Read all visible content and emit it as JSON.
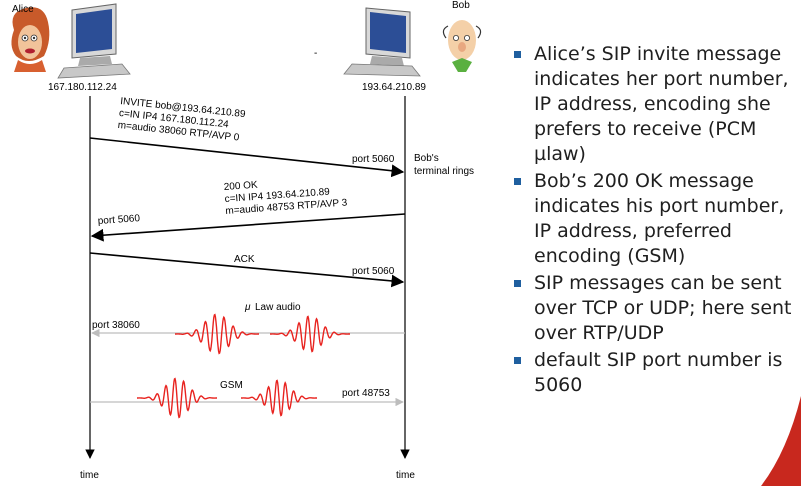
{
  "participants": {
    "alice": {
      "name": "Alice",
      "ip": "167.180.112.24"
    },
    "bob": {
      "name": "Bob",
      "ip": "193.64.210.89"
    },
    "dash": "-"
  },
  "time_label": "time",
  "messages": {
    "invite": {
      "lines": [
        "INVITE bob@193.64.210.89",
        "c=IN IP4 167.180.112.24",
        "m=audio 38060 RTP/AVP 0"
      ],
      "port": "port 5060"
    },
    "bob_rings": [
      "Bob's",
      "terminal rings"
    ],
    "ok": {
      "lines": [
        "200 OK",
        "c=IN IP4 193.64.210.89",
        "m=audio 48753 RTP/AVP 3"
      ],
      "port": "port 5060"
    },
    "ack": {
      "label": "ACK",
      "port": "port 5060"
    },
    "ulaw": {
      "mu": "μ",
      "label": "Law audio",
      "port": "port 38060"
    },
    "gsm": {
      "label": "GSM",
      "port": "port 48753"
    }
  },
  "bullets": [
    "Alice’s SIP invite message indicates her port number, IP address, encoding she prefers to receive (PCM µlaw)",
    "Bob’s 200 OK message indicates his port number, IP address, preferred encoding (GSM)",
    "SIP messages can be sent over TCP or UDP; here sent over RTP/UDP",
    "default SIP port number is 5060"
  ],
  "colors": {
    "wave": "#e8231f",
    "accent": "#c8281e",
    "bullet": "#1f5f9f"
  }
}
